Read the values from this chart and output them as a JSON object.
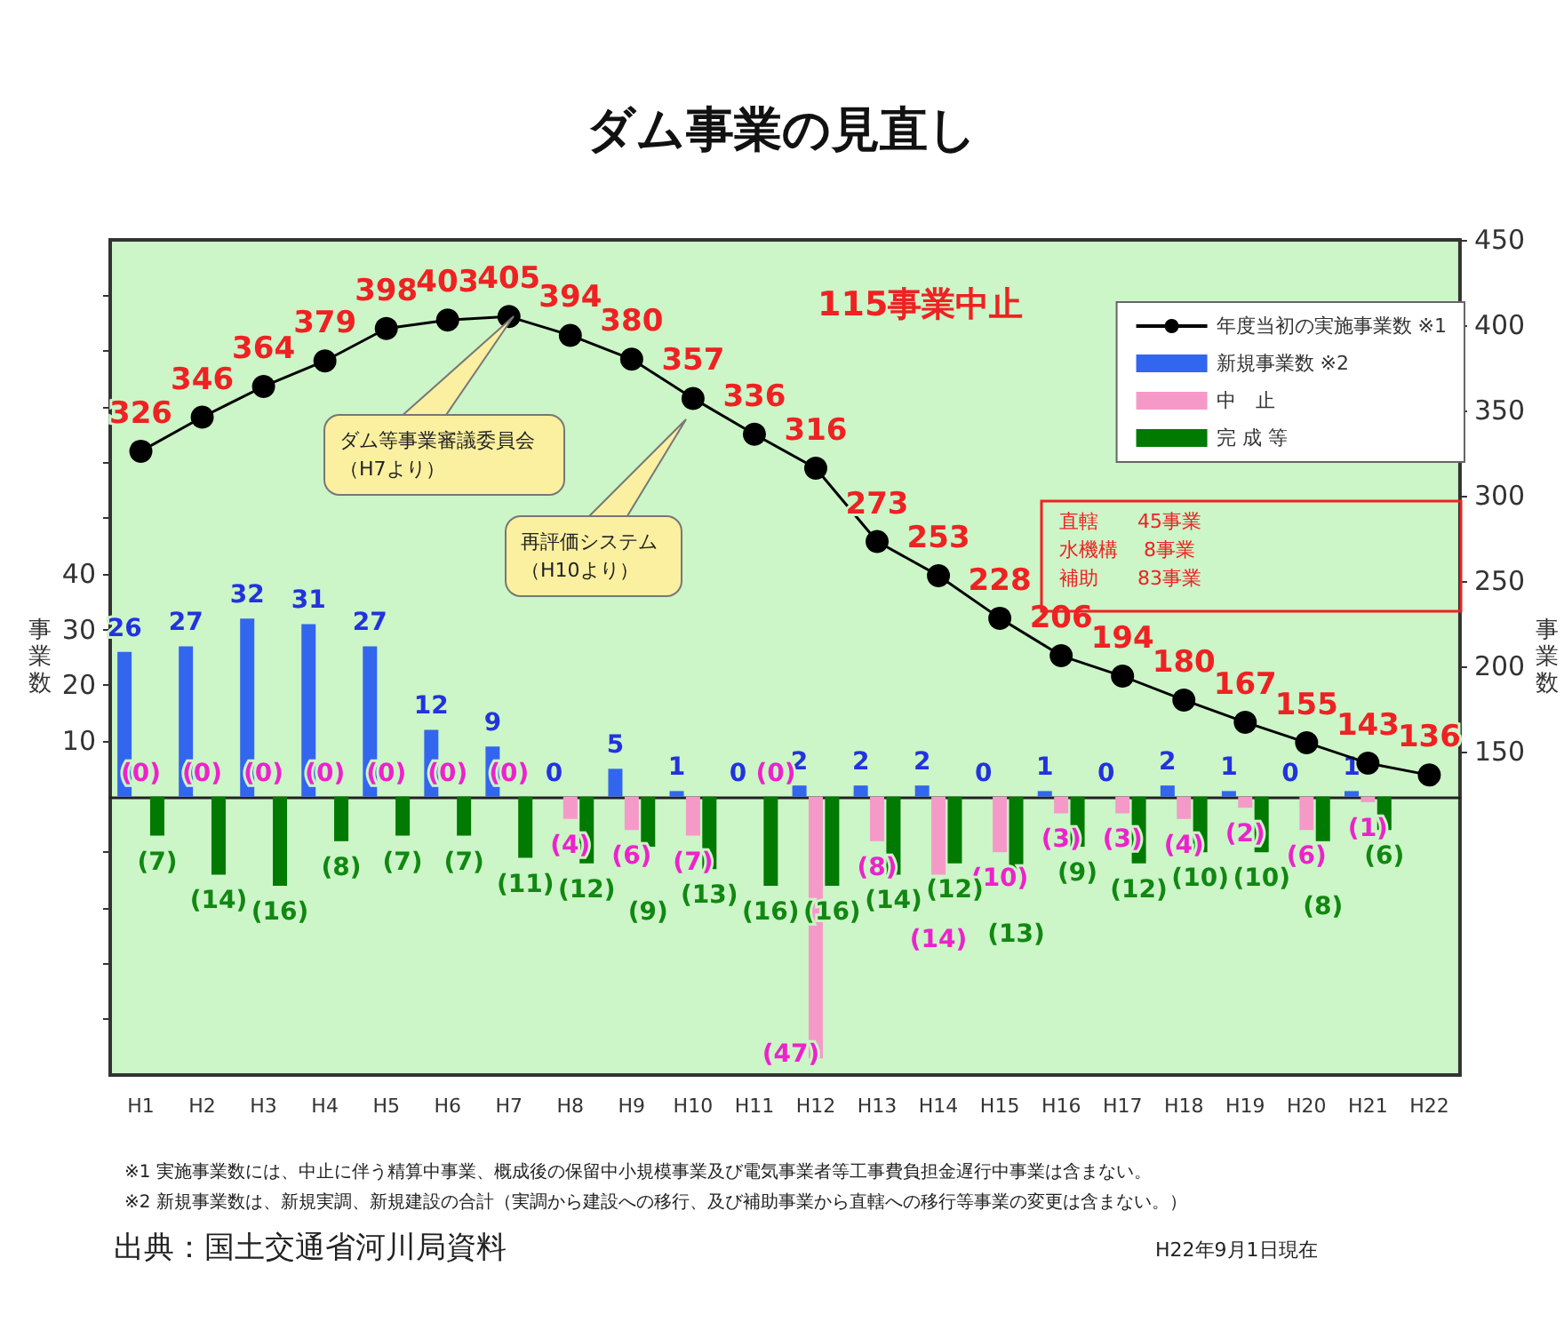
{
  "chart_data": {
    "type": "bar",
    "title": "ダム事業の見直し",
    "ylabel": "事業数",
    "y2label": "事業数",
    "categories": [
      "H1",
      "H2",
      "H3",
      "H4",
      "H5",
      "H6",
      "H7",
      "H8",
      "H9",
      "H10",
      "H11",
      "H12",
      "H13",
      "H14",
      "H15",
      "H16",
      "H17",
      "H18",
      "H19",
      "H20",
      "H21",
      "H22"
    ],
    "series": [
      {
        "name": "年度当初の実施事業数 ※1",
        "type": "line",
        "axis": "y2",
        "color": "#000000",
        "marker": "circle",
        "values": [
          326,
          346,
          364,
          379,
          398,
          403,
          405,
          394,
          380,
          357,
          336,
          316,
          273,
          253,
          228,
          206,
          194,
          180,
          167,
          155,
          143,
          136
        ],
        "value_labels": [
          "326",
          "346",
          "364",
          "379",
          "398",
          "403",
          "405",
          "394",
          "380",
          "357",
          "336",
          "316",
          "273",
          "253",
          "228",
          "206",
          "194",
          "180",
          "167",
          "155",
          "143",
          "136"
        ]
      },
      {
        "name": "新規事業数 ※2",
        "color": "#3366ee",
        "values": [
          26,
          27,
          32,
          31,
          27,
          12,
          9,
          0,
          5,
          1,
          0,
          2,
          2,
          2,
          0,
          1,
          0,
          2,
          1,
          0,
          1,
          null
        ],
        "value_labels": [
          "26",
          "27",
          "32",
          "31",
          "27",
          "12",
          "9",
          "0",
          "5",
          "1",
          "0",
          "2",
          "2",
          "2",
          "0",
          "1",
          "0",
          "2",
          "1",
          "0",
          "1",
          null
        ]
      },
      {
        "name": "中　止",
        "color": "#f59ac8",
        "values": [
          0,
          0,
          0,
          0,
          0,
          0,
          0,
          -4,
          -6,
          -7,
          0,
          -47,
          -8,
          -14,
          -10,
          -3,
          -3,
          -4,
          -2,
          -6,
          -1,
          null
        ],
        "value_labels": [
          "(0)",
          "(0)",
          "(0)",
          "(0)",
          "(0)",
          "(0)",
          "(0)",
          "(4)",
          "(6)",
          "(7)",
          "(0)",
          "(47)",
          "(8)",
          "(14)",
          "(10)",
          "(3)",
          "(3)",
          "(4)",
          "(2)",
          "(6)",
          "(1)",
          null
        ]
      },
      {
        "name": "完 成 等",
        "color": "#007a00",
        "values": [
          -7,
          -14,
          -16,
          -8,
          -7,
          -7,
          -11,
          -12,
          -9,
          -13,
          -16,
          -16,
          -14,
          -12,
          -13,
          -9,
          -12,
          -10,
          -10,
          -8,
          -6,
          null
        ],
        "value_labels": [
          "(7)",
          "(14)",
          "(16)",
          "(8)",
          "(7)",
          "(7)",
          "(11)",
          "(12)",
          "(9)",
          "(13)",
          "(16)",
          "(16)",
          "(14)",
          "(12)",
          "(13)",
          "(9)",
          "(12)",
          "(10)",
          "(10)",
          "(8)",
          "(6)",
          null
        ]
      }
    ],
    "ylim": [
      -50,
      100
    ],
    "yticks": [
      {
        "value": -40,
        "label": null
      },
      {
        "value": -30,
        "label": null
      },
      {
        "value": -20,
        "label": null
      },
      {
        "value": -10,
        "label": null
      },
      10,
      20,
      30,
      40,
      {
        "value": 50,
        "label": null
      },
      {
        "value": 60,
        "label": null
      },
      {
        "value": 70,
        "label": null
      },
      {
        "value": 80,
        "label": null
      },
      {
        "value": 90,
        "label": null
      }
    ],
    "y2lim": [
      -40,
      450
    ],
    "y2ticks": [
      150,
      200,
      250,
      300,
      350,
      400,
      450
    ],
    "legend": "top right",
    "grid": false,
    "annotations": [
      "ダム等事業審議委員会（H7より）",
      "再評価システム（H10より）",
      "115事業中止",
      "直轄　　45事業",
      "水機構　 8事業",
      "補助　　83事業",
      "※1 実施事業数には、中止に伴う精算中事業、概成後の保留中小規模事業及び電気事業者等工事費負担金遅行中事業は含まない。",
      "※2 新規事業数は、新規実調、新規建設の合計（実調から建設への移行、及び補助事業から直轄への移行等事業の変更は含まない。）",
      "出典：国土交通省河川局資料",
      "H22年9月1日現在"
    ]
  }
}
